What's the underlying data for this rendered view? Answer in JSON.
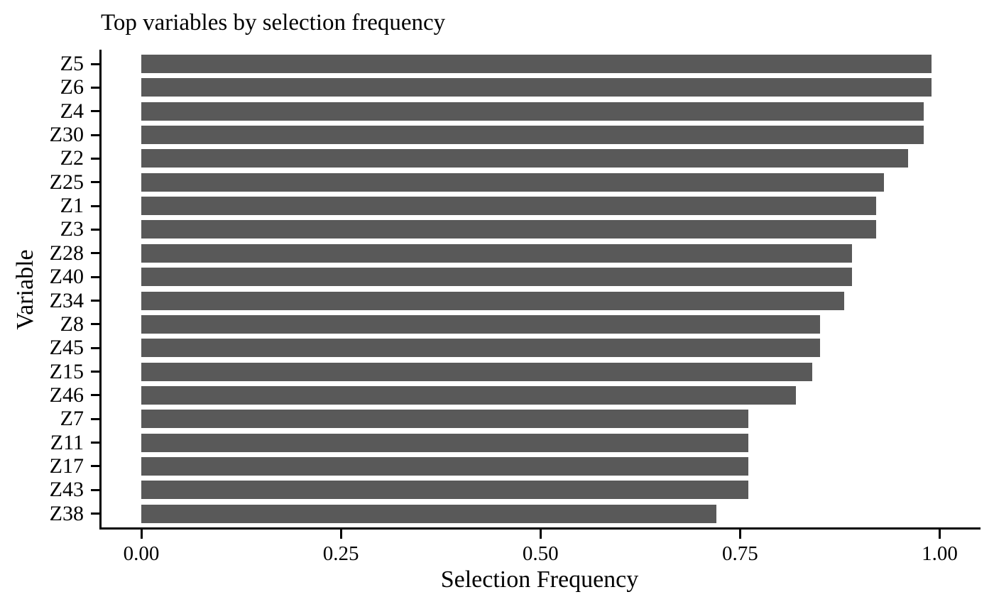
{
  "chart": {
    "title": "Top variables by selection frequency",
    "xlabel": "Selection Frequency",
    "ylabel": "Variable"
  },
  "chart_data": {
    "type": "bar",
    "orientation": "horizontal",
    "title": "Top variables by selection frequency",
    "xlabel": "Selection Frequency",
    "ylabel": "Variable",
    "categories": [
      "Z5",
      "Z6",
      "Z4",
      "Z30",
      "Z2",
      "Z25",
      "Z1",
      "Z3",
      "Z28",
      "Z40",
      "Z34",
      "Z8",
      "Z45",
      "Z15",
      "Z46",
      "Z7",
      "Z11",
      "Z17",
      "Z43",
      "Z38"
    ],
    "values": [
      0.99,
      0.99,
      0.98,
      0.98,
      0.96,
      0.93,
      0.92,
      0.92,
      0.89,
      0.89,
      0.88,
      0.85,
      0.85,
      0.84,
      0.82,
      0.76,
      0.76,
      0.76,
      0.76,
      0.72
    ],
    "xlim": [
      -0.05,
      1.05
    ],
    "xticks": [
      0,
      0.25,
      0.5,
      0.75,
      1.0
    ],
    "xtick_labels": [
      "0.00",
      "0.25",
      "0.50",
      "0.75",
      "1.00"
    ],
    "grid": false,
    "legend": false,
    "bar_color": "#595959",
    "axis_color": "#000000",
    "text_color": "#000000",
    "background_color": "#ffffff"
  }
}
